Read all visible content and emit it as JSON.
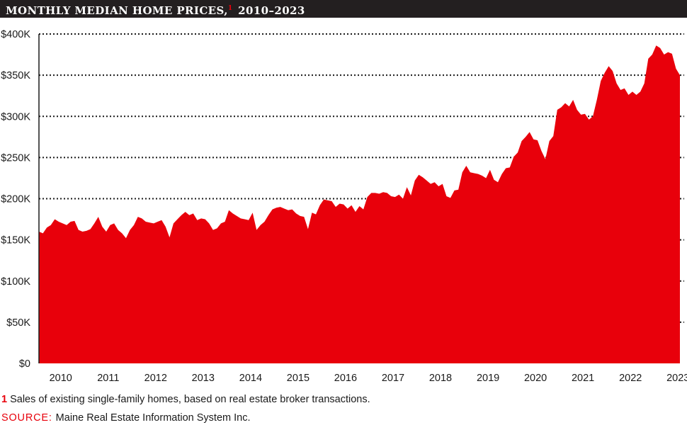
{
  "header": {
    "title": "MONTHLY MEDIAN HOME PRICES,",
    "title_footnote_marker": "1",
    "title_range": "2010–2023"
  },
  "footnote": {
    "marker": "1",
    "text": "Sales of existing single-family homes, based on real estate broker transactions."
  },
  "source": {
    "label": "SOURCE:",
    "text": "Maine Real Estate Information System Inc."
  },
  "colors": {
    "fill": "#e8000b",
    "title_bar": "#231f20",
    "grid": "#1a1a1a"
  },
  "chart_data": {
    "type": "area",
    "ylim": [
      0,
      400000
    ],
    "y_ticks": [
      {
        "value": 0,
        "label": "$0"
      },
      {
        "value": 50000,
        "label": "$50K"
      },
      {
        "value": 100000,
        "label": "$100K"
      },
      {
        "value": 150000,
        "label": "$150K"
      },
      {
        "value": 200000,
        "label": "$200K"
      },
      {
        "value": 250000,
        "label": "$250K"
      },
      {
        "value": 300000,
        "label": "$300K"
      },
      {
        "value": 350000,
        "label": "$350K"
      },
      {
        "value": 400000,
        "label": "$400K"
      }
    ],
    "grid": "horizontal dotted",
    "x_tick_labels": [
      "2010",
      "2011",
      "2012",
      "2013",
      "2014",
      "2015",
      "2016",
      "2017",
      "2018",
      "2019",
      "2020",
      "2021",
      "2022",
      "2023"
    ],
    "x_start": "2010-01",
    "series": [
      {
        "values": [
          160000,
          158000,
          165000,
          168000,
          175000,
          172000,
          170000,
          168000,
          172000,
          173000,
          162000,
          160000,
          161000,
          163000,
          170000,
          178000,
          166000,
          160000,
          168000,
          170000,
          162000,
          158000,
          152000,
          162000,
          168000,
          178000,
          176000,
          172000,
          171000,
          170000,
          172000,
          174000,
          166000,
          153000,
          170000,
          175000,
          180000,
          184000,
          180000,
          182000,
          174000,
          176000,
          175000,
          170000,
          162000,
          164000,
          170000,
          172000,
          186000,
          182000,
          179000,
          176000,
          175000,
          174000,
          183000,
          162000,
          168000,
          172000,
          180000,
          187000,
          189000,
          190000,
          188000,
          186000,
          187000,
          182000,
          179000,
          178000,
          163000,
          183000,
          181000,
          192000,
          199000,
          198000,
          197000,
          190000,
          194000,
          193000,
          188000,
          192000,
          184000,
          191000,
          187000,
          202000,
          207000,
          207000,
          206000,
          208000,
          207000,
          203000,
          202000,
          205000,
          200000,
          214000,
          204000,
          222000,
          229000,
          226000,
          222000,
          218000,
          220000,
          215000,
          218000,
          203000,
          201000,
          210000,
          211000,
          232000,
          240000,
          232000,
          231000,
          230000,
          228000,
          225000,
          235000,
          223000,
          220000,
          230000,
          237000,
          238000,
          251000,
          256000,
          270000,
          275000,
          281000,
          272000,
          271000,
          258000,
          248000,
          270000,
          276000,
          308000,
          311000,
          316000,
          312000,
          320000,
          308000,
          302000,
          303000,
          296000,
          300000,
          320000,
          343000,
          353000,
          361000,
          355000,
          340000,
          332000,
          334000,
          326000,
          330000,
          326000,
          330000,
          340000,
          370000,
          375000,
          386000,
          383000,
          375000,
          378000,
          376000,
          358000,
          350000
        ]
      }
    ]
  }
}
